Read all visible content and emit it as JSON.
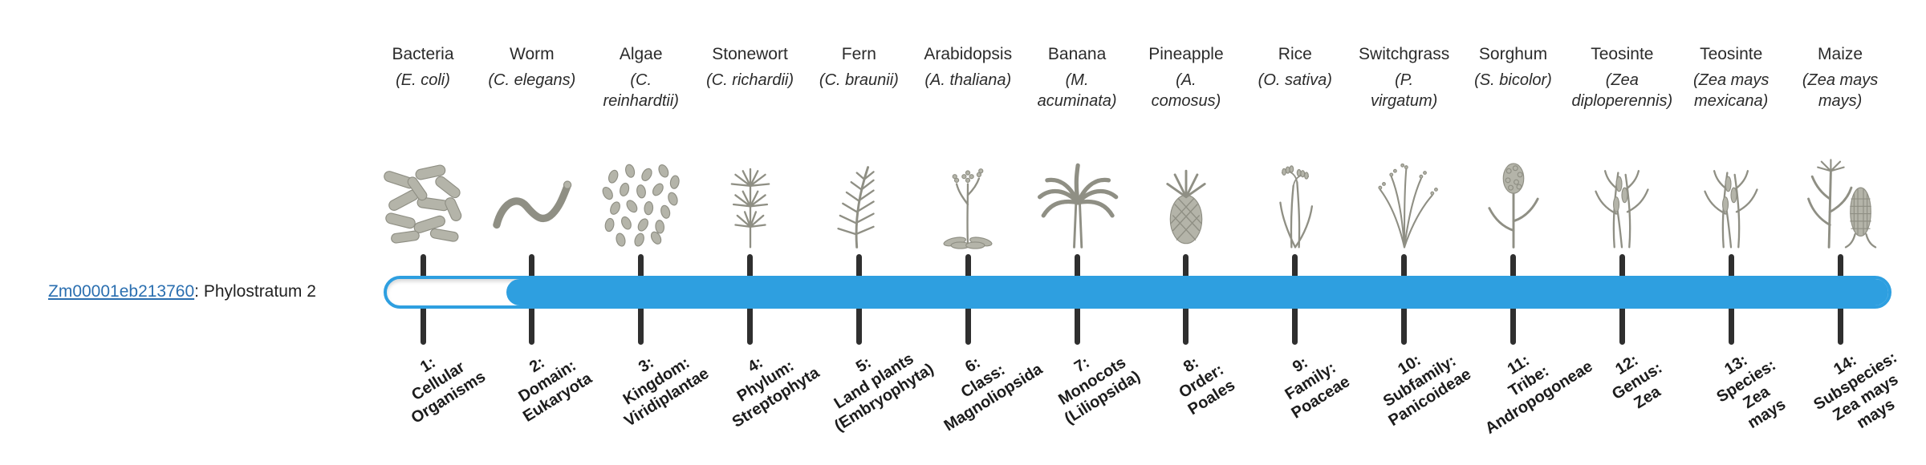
{
  "gene": {
    "id": "Zm00001eb213760",
    "suffix": ": Phylostratum 2",
    "phylostratum": 2,
    "total_strata": 14
  },
  "colors": {
    "accent": "#2e9fe0",
    "link": "#2b6fb0",
    "tick": "#2f2f2f"
  },
  "chart_data": {
    "type": "bar",
    "orientation": "horizontal",
    "title": "Zm00001eb213760: Phylostratum 2",
    "categories": [
      "1: Cellular Organisms",
      "2: Domain: Eukaryota",
      "3: Kingdom: Viridiplantae",
      "4: Phylum: Streptophyta",
      "5: Land plants (Embryophyta)",
      "6: Class: Magnoliopsida",
      "7: Monocots (Liliopsida)",
      "8: Order: Poales",
      "9: Family: Poaceae",
      "10: Subfamily: Panicoideae",
      "11: Tribe: Andropogoneae",
      "12: Genus: Zea",
      "13: Species: Zea mays",
      "14: Subspecies: Zea mays mays"
    ],
    "series": [
      {
        "name": "Zm00001eb213760",
        "label": "Phylostratum 2",
        "bar_span_strata": [
          2,
          14
        ]
      }
    ],
    "xlim": [
      1,
      14
    ],
    "legend": "none",
    "grid": false
  },
  "organisms": [
    {
      "name": "Bacteria",
      "sci": "(E. coli)",
      "icon": "bacteria-icon",
      "stratum_label": "1:\nCellular\nOrganisms"
    },
    {
      "name": "Worm",
      "sci": "(C. elegans)",
      "icon": "worm-icon",
      "stratum_label": "2:\nDomain:\nEukaryota"
    },
    {
      "name": "Algae",
      "sci": "(C.\nreinhardtii)",
      "icon": "algae-icon",
      "stratum_label": "3:\nKingdom:\nViridiplantae"
    },
    {
      "name": "Stonewort",
      "sci": "(C. richardii)",
      "icon": "stonewort-icon",
      "stratum_label": "4:\nPhylum:\nStreptophyta"
    },
    {
      "name": "Fern",
      "sci": "(C. braunii)",
      "icon": "fern-icon",
      "stratum_label": "5:\nLand plants\n(Embryophyta)"
    },
    {
      "name": "Arabidopsis",
      "sci": "(A. thaliana)",
      "icon": "arabidopsis-icon",
      "stratum_label": "6:\nClass:\nMagnoliopsida"
    },
    {
      "name": "Banana",
      "sci": "(M.\nacuminata)",
      "icon": "banana-icon",
      "stratum_label": "7:\nMonocots\n(Liliopsida)"
    },
    {
      "name": "Pineapple",
      "sci": "(A.\ncomosus)",
      "icon": "pineapple-icon",
      "stratum_label": "8:\nOrder:\nPoales"
    },
    {
      "name": "Rice",
      "sci": "(O. sativa)",
      "icon": "rice-icon",
      "stratum_label": "9:\nFamily:\nPoaceae"
    },
    {
      "name": "Switchgrass",
      "sci": "(P.\nvirgatum)",
      "icon": "switchgrass-icon",
      "stratum_label": "10:\nSubfamily:\nPanicoideae"
    },
    {
      "name": "Sorghum",
      "sci": "(S. bicolor)",
      "icon": "sorghum-icon",
      "stratum_label": "11:\nTribe:\nAndropogoneae"
    },
    {
      "name": "Teosinte",
      "sci": "(Zea\ndiploperennis)",
      "icon": "teosinte-icon",
      "stratum_label": "12:\nGenus:\nZea"
    },
    {
      "name": "Teosinte",
      "sci": "(Zea mays\nmexicana)",
      "icon": "teosinte-icon",
      "stratum_label": "13:\nSpecies:\nZea\nmays"
    },
    {
      "name": "Maize",
      "sci": "(Zea mays\nmays)",
      "icon": "maize-icon",
      "stratum_label": "14:\nSubspecies:\nZea mays\nmays"
    }
  ]
}
